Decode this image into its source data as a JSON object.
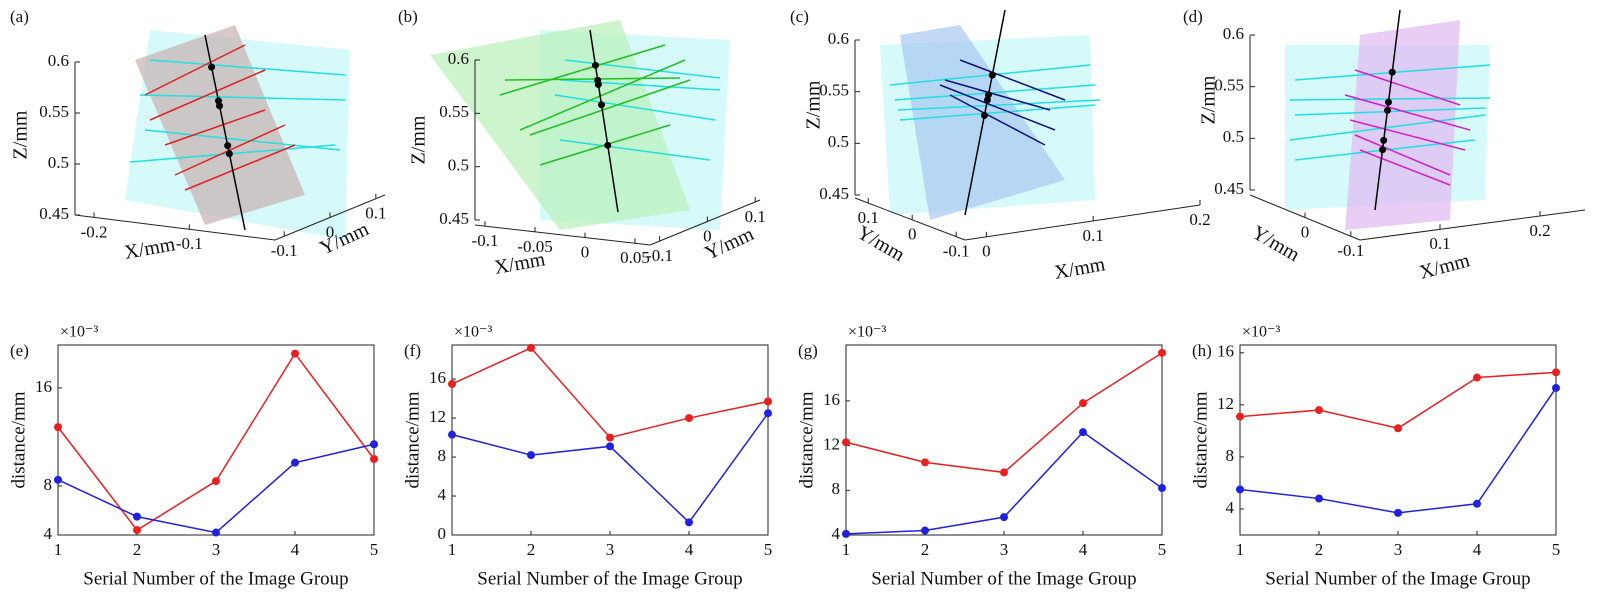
{
  "chart_data": [
    {
      "type": "line3d",
      "panel_label": "(a)",
      "xlabel": "X/mm",
      "ylabel": "Y/mm",
      "zlabel": "Z/mm",
      "color": "#e02020",
      "xlim": [
        -0.22,
        -0.01
      ],
      "xticks": [
        -0.2,
        -0.1
      ],
      "ylim": [
        -0.12,
        0.12
      ],
      "yticks": [
        -0.1,
        0,
        0.1
      ],
      "zlim": [
        0.45,
        0.6
      ],
      "zticks": [
        0.45,
        0.5,
        0.55,
        0.6
      ],
      "points": {
        "z": [
          0.595,
          0.562,
          0.557,
          0.518,
          0.51
        ]
      }
    },
    {
      "type": "line3d",
      "panel_label": "(b)",
      "xlabel": "X/mm",
      "ylabel": "Y/mm",
      "zlabel": "Z/mm",
      "color": "#20c020",
      "xlim": [
        -0.11,
        0.065
      ],
      "xticks": [
        -0.1,
        -0.05,
        0,
        0.05
      ],
      "ylim": [
        -0.12,
        0.11
      ],
      "yticks": [
        -0.1,
        0,
        0.1
      ],
      "zlim": [
        0.45,
        0.6
      ],
      "zticks": [
        0.45,
        0.5,
        0.55,
        0.6
      ],
      "points": {
        "z": [
          0.595,
          0.581,
          0.577,
          0.558,
          0.52
        ]
      }
    },
    {
      "type": "line3d",
      "panel_label": "(c)",
      "xlabel": "X/mm",
      "ylabel": "Y/mm",
      "zlabel": "Z/mm",
      "color": "#101080",
      "xlim": [
        -0.02,
        0.2
      ],
      "xticks": [
        0,
        0.1,
        0.2
      ],
      "ylim": [
        0.13,
        -0.12
      ],
      "yticks": [
        -0.1,
        0,
        0.1
      ],
      "zlim": [
        0.45,
        0.6
      ],
      "zticks": [
        0.45,
        0.5,
        0.55,
        0.6
      ],
      "points": {
        "z": [
          0.566,
          0.547,
          0.542,
          0.527
        ]
      }
    },
    {
      "type": "line3d",
      "panel_label": "(d)",
      "xlabel": "X/mm",
      "ylabel": "Y/mm",
      "zlabel": "Z/mm",
      "color": "#d020d0",
      "xlim": [
        0.02,
        0.245
      ],
      "xticks": [
        0.1,
        0.2
      ],
      "ylim": [
        0.12,
        -0.12
      ],
      "yticks": [
        -0.1,
        0
      ],
      "zlim": [
        0.45,
        0.6
      ],
      "zticks": [
        0.45,
        0.5,
        0.55,
        0.6
      ],
      "points": {
        "z": [
          0.564,
          0.535,
          0.527,
          0.498,
          0.489
        ]
      }
    },
    {
      "type": "line",
      "panel_label": "(e)",
      "xlabel": "Serial Number of the Image Group",
      "ylabel": "distance/mm",
      "y_multiplier": "×10⁻³",
      "x": [
        1,
        2,
        3,
        4,
        5
      ],
      "xlim": [
        1,
        5
      ],
      "xticks": [
        1,
        2,
        3,
        4,
        5
      ],
      "ylim": [
        4,
        19.5
      ],
      "yticks": [
        4,
        8,
        16
      ],
      "series": [
        {
          "color": "#e82020",
          "values": [
            12.8,
            4.4,
            8.4,
            18.8,
            10.2
          ]
        },
        {
          "color": "#2020e0",
          "values": [
            8.5,
            5.5,
            4.2,
            9.9,
            11.4
          ]
        }
      ]
    },
    {
      "type": "line",
      "panel_label": "(f)",
      "xlabel": "Serial Number of the Image Group",
      "ylabel": "distance/mm",
      "y_multiplier": "×10⁻³",
      "x": [
        1,
        2,
        3,
        4,
        5
      ],
      "xlim": [
        1,
        5
      ],
      "xticks": [
        1,
        2,
        3,
        4,
        5
      ],
      "ylim": [
        0,
        19.5
      ],
      "yticks": [
        0,
        4,
        8,
        12,
        16
      ],
      "series": [
        {
          "color": "#e82020",
          "values": [
            15.5,
            19.2,
            10.0,
            12.0,
            13.7
          ]
        },
        {
          "color": "#2020e0",
          "values": [
            10.3,
            8.2,
            9.1,
            1.3,
            12.5
          ]
        }
      ]
    },
    {
      "type": "line",
      "panel_label": "(g)",
      "xlabel": "Serial Number of the Image Group",
      "ylabel": "distance/mm",
      "y_multiplier": "×10⁻³",
      "x": [
        1,
        2,
        3,
        4,
        5
      ],
      "xlim": [
        1,
        5
      ],
      "xticks": [
        1,
        2,
        3,
        4,
        5
      ],
      "ylim": [
        4,
        21
      ],
      "yticks": [
        4,
        8,
        12,
        16
      ],
      "series": [
        {
          "color": "#e82020",
          "values": [
            12.3,
            10.5,
            9.6,
            15.8,
            20.3
          ]
        },
        {
          "color": "#2020e0",
          "values": [
            4.1,
            4.4,
            5.6,
            13.2,
            8.2
          ]
        }
      ]
    },
    {
      "type": "line",
      "panel_label": "(h)",
      "xlabel": "Serial Number of the Image Group",
      "ylabel": "distance/mm",
      "y_multiplier": "×10⁻³",
      "x": [
        1,
        2,
        3,
        4,
        5
      ],
      "xlim": [
        1,
        5
      ],
      "xticks": [
        1,
        2,
        3,
        4,
        5
      ],
      "ylim": [
        2,
        16.6
      ],
      "yticks": [
        4,
        8,
        12,
        16
      ],
      "series": [
        {
          "color": "#e82020",
          "values": [
            11.1,
            11.6,
            10.2,
            14.1,
            14.5
          ]
        },
        {
          "color": "#2020e0",
          "values": [
            5.5,
            4.8,
            3.7,
            4.4,
            13.3
          ]
        }
      ]
    }
  ]
}
